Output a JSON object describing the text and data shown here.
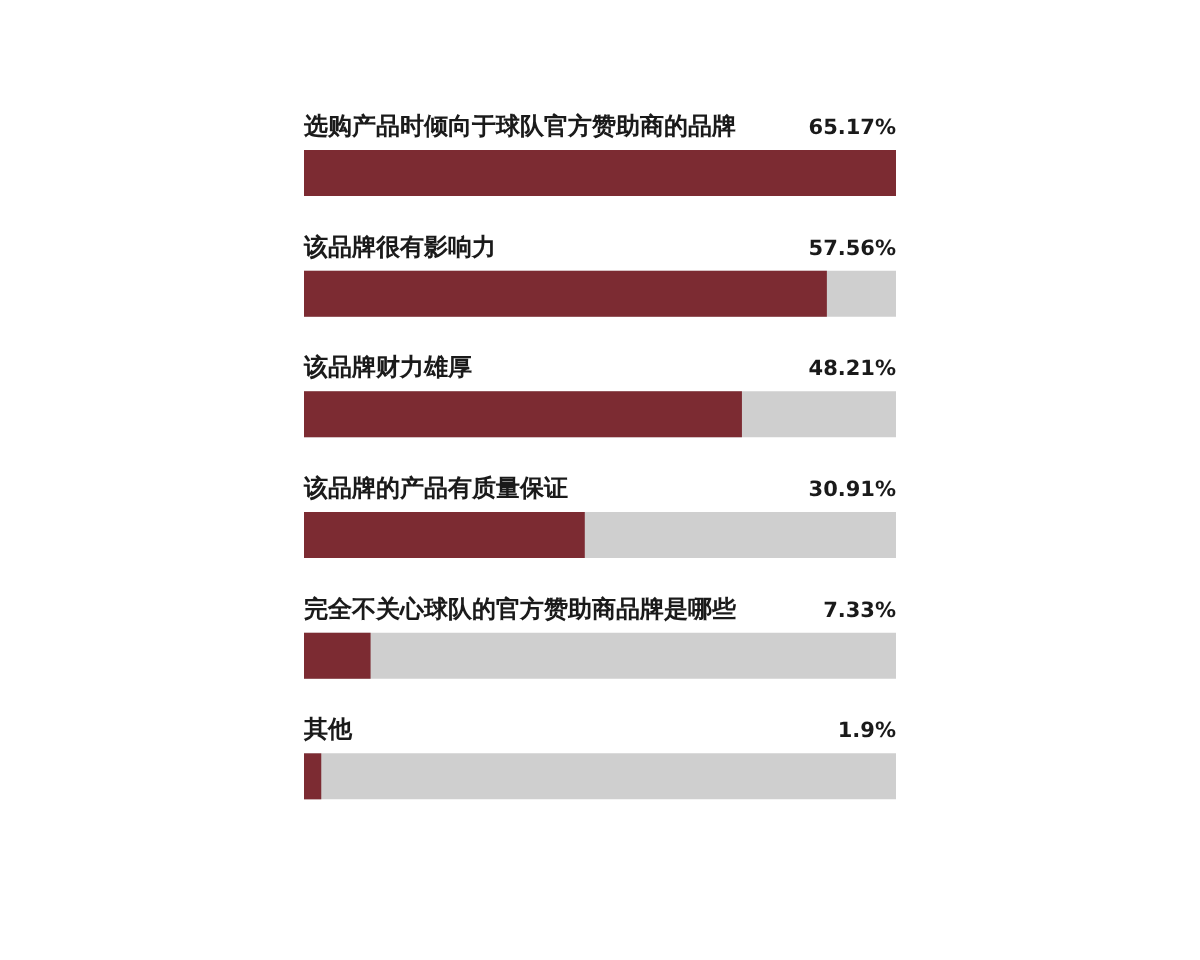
{
  "chart_data": {
    "type": "bar",
    "orientation": "horizontal",
    "categories": [
      "选购产品时倾向于球队官方赞助商的品牌",
      "该品牌很有影响力",
      "该品牌财力雄厚",
      "该品牌的产品有质量保证",
      "完全不关心球队的官方赞助商品牌是哪些",
      "其他"
    ],
    "values": [
      65.17,
      57.56,
      48.21,
      30.91,
      7.33,
      1.9
    ],
    "color": "#7c2b32",
    "value_labels": [
      "65.17%",
      "57.56%",
      "48.21%",
      "30.91%",
      "7.33%",
      "1.9%"
    ]
  }
}
